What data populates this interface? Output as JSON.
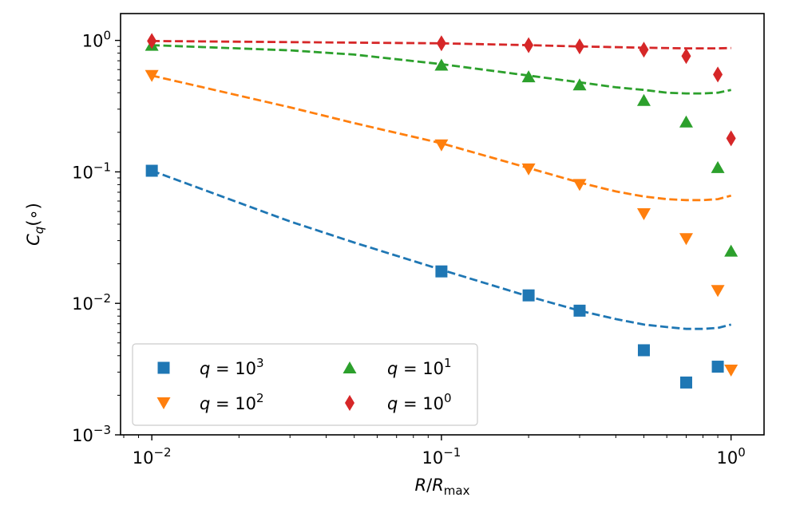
{
  "chart_data": {
    "type": "scatter",
    "title": "",
    "xlabel": "R/R_max",
    "ylabel": "C_q(∘)",
    "xscale": "log",
    "yscale": "log",
    "xlim": [
      0.0078,
      1.3
    ],
    "ylim": [
      0.001,
      1.6
    ],
    "xticks": [
      {
        "value": 0.01,
        "base": "10",
        "exp": "−2"
      },
      {
        "value": 0.1,
        "base": "10",
        "exp": "−1"
      },
      {
        "value": 1,
        "base": "10",
        "exp": "0"
      }
    ],
    "yticks": [
      {
        "value": 0.001,
        "base": "10",
        "exp": "−3"
      },
      {
        "value": 0.01,
        "base": "10",
        "exp": "−2"
      },
      {
        "value": 0.1,
        "base": "10",
        "exp": "−1"
      },
      {
        "value": 1,
        "base": "10",
        "exp": "0"
      }
    ],
    "legend_position": "lower-left",
    "series": [
      {
        "name": "q = 10^3",
        "q_exp": "3",
        "color": "#1f77b4",
        "marker": "square",
        "x": [
          0.01,
          0.1,
          0.2,
          0.3,
          0.5,
          0.7,
          0.9
        ],
        "y": [
          0.102,
          0.0175,
          0.0115,
          0.0088,
          0.0044,
          0.0025,
          0.0033
        ],
        "fit": {
          "x": [
            0.01,
            0.03,
            0.05,
            0.1,
            0.2,
            0.3,
            0.4,
            0.5,
            0.6,
            0.7,
            0.8,
            0.9,
            1.0
          ],
          "y": [
            0.102,
            0.042,
            0.029,
            0.018,
            0.0113,
            0.0088,
            0.0076,
            0.0069,
            0.0066,
            0.0064,
            0.0064,
            0.0065,
            0.0069
          ]
        }
      },
      {
        "name": "q = 10^2",
        "q_exp": "2",
        "color": "#ff7f0e",
        "marker": "triangle-down",
        "x": [
          0.01,
          0.1,
          0.2,
          0.3,
          0.5,
          0.7,
          0.9,
          1.0
        ],
        "y": [
          0.54,
          0.16,
          0.105,
          0.08,
          0.048,
          0.031,
          0.0125,
          0.0031
        ],
        "fit": {
          "x": [
            0.01,
            0.03,
            0.05,
            0.1,
            0.2,
            0.3,
            0.4,
            0.5,
            0.6,
            0.7,
            0.8,
            0.9,
            1.0
          ],
          "y": [
            0.54,
            0.31,
            0.235,
            0.165,
            0.107,
            0.083,
            0.071,
            0.065,
            0.062,
            0.061,
            0.061,
            0.062,
            0.066
          ]
        }
      },
      {
        "name": "q = 10^1",
        "q_exp": "1",
        "color": "#2ca02c",
        "marker": "triangle-up",
        "x": [
          0.01,
          0.1,
          0.2,
          0.3,
          0.5,
          0.7,
          0.9,
          1.0
        ],
        "y": [
          0.92,
          0.65,
          0.53,
          0.46,
          0.35,
          0.24,
          0.108,
          0.025
        ],
        "fit": {
          "x": [
            0.01,
            0.03,
            0.05,
            0.1,
            0.2,
            0.3,
            0.4,
            0.5,
            0.6,
            0.7,
            0.8,
            0.9,
            1.0
          ],
          "y": [
            0.92,
            0.84,
            0.78,
            0.66,
            0.54,
            0.48,
            0.44,
            0.42,
            0.4,
            0.395,
            0.395,
            0.4,
            0.42
          ]
        }
      },
      {
        "name": "q = 10^0",
        "q_exp": "0",
        "color": "#d62728",
        "marker": "diamond",
        "x": [
          0.01,
          0.1,
          0.2,
          0.3,
          0.5,
          0.7,
          0.9,
          1.0
        ],
        "y": [
          0.99,
          0.95,
          0.92,
          0.9,
          0.85,
          0.76,
          0.55,
          0.18
        ],
        "fit": {
          "x": [
            0.01,
            0.1,
            0.2,
            0.3,
            0.5,
            0.7,
            0.9,
            1.0
          ],
          "y": [
            0.99,
            0.95,
            0.92,
            0.9,
            0.88,
            0.87,
            0.87,
            0.875
          ]
        }
      }
    ]
  }
}
